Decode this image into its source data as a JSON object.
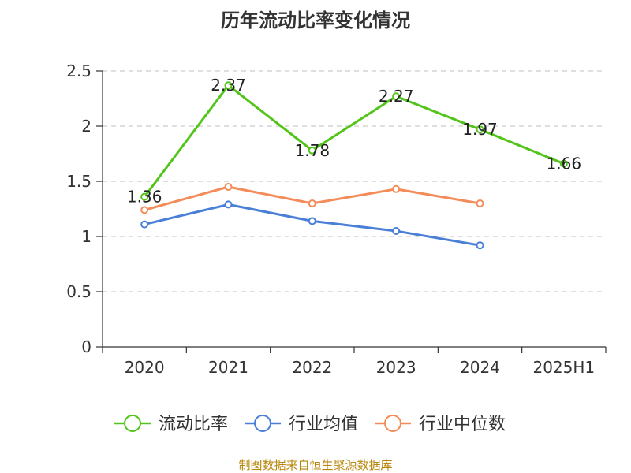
{
  "chart_data": {
    "type": "line",
    "title": "历年流动比率变化情况",
    "categories": [
      "2020",
      "2021",
      "2022",
      "2023",
      "2024",
      "2025H1"
    ],
    "ylim": [
      0,
      2.5
    ],
    "yticks": [
      "0",
      "0.5",
      "1",
      "1.5",
      "2",
      "2.5"
    ],
    "grid": true,
    "legend_position": "bottom",
    "series": [
      {
        "name": "流动比率",
        "color": "#52c41a",
        "values": [
          1.36,
          2.37,
          1.78,
          2.27,
          1.97,
          1.66
        ],
        "labels": [
          "1.36",
          "2.37",
          "1.78",
          "2.27",
          "1.97",
          "1.66"
        ]
      },
      {
        "name": "行业均值",
        "color": "#4a7fd8",
        "values": [
          1.11,
          1.29,
          1.14,
          1.05,
          0.92,
          null
        ]
      },
      {
        "name": "行业中位数",
        "color": "#f48c5a",
        "values": [
          1.24,
          1.45,
          1.3,
          1.43,
          1.3,
          null
        ]
      }
    ],
    "source": "制图数据来自恒生聚源数据库"
  }
}
